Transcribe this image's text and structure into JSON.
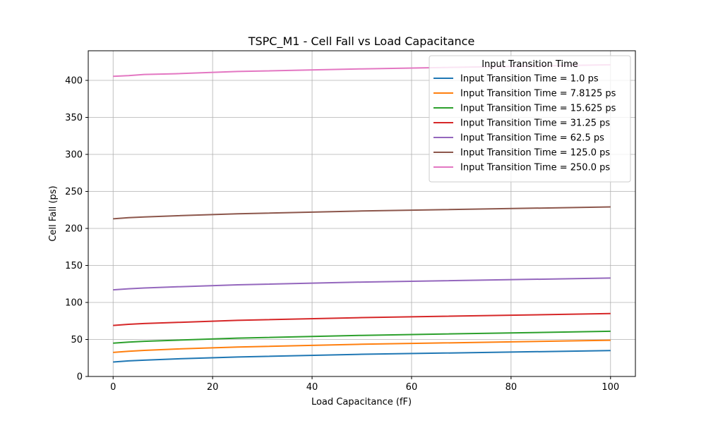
{
  "chart_data": {
    "type": "line",
    "title": "TSPC_M1 - Cell Fall vs Load Capacitance",
    "xlabel": "Load Capacitance (fF)",
    "ylabel": "Cell Fall (ps)",
    "xlim": [
      -5,
      105
    ],
    "ylim": [
      0,
      440
    ],
    "xticks": [
      0,
      20,
      40,
      60,
      80,
      100
    ],
    "yticks": [
      0,
      50,
      100,
      150,
      200,
      250,
      300,
      350,
      400
    ],
    "grid": true,
    "legend": {
      "title": "Input Transition Time",
      "placement": "top-right"
    },
    "x": [
      0,
      3.125,
      6.25,
      12.5,
      25,
      50,
      100
    ],
    "series": [
      {
        "name": "Input Transition Time = 1.0 ps",
        "color": "#1f77b4",
        "values": [
          19.5,
          21.0,
          22.0,
          23.7,
          26.3,
          30.0,
          35.0
        ]
      },
      {
        "name": "Input Transition Time = 7.8125 ps",
        "color": "#ff7f0e",
        "values": [
          32.5,
          34.0,
          35.2,
          37.0,
          39.8,
          43.5,
          49.0
        ]
      },
      {
        "name": "Input Transition Time = 15.625 ps",
        "color": "#2ca02c",
        "values": [
          45.0,
          46.5,
          47.5,
          49.0,
          51.8,
          55.5,
          61.0
        ]
      },
      {
        "name": "Input Transition Time = 31.25 ps",
        "color": "#d62728",
        "values": [
          69.0,
          70.5,
          71.5,
          73.0,
          75.8,
          79.5,
          85.0
        ]
      },
      {
        "name": "Input Transition Time = 62.5 ps",
        "color": "#9467bd",
        "values": [
          117.0,
          118.5,
          119.5,
          121.0,
          123.8,
          127.5,
          133.0
        ]
      },
      {
        "name": "Input Transition Time = 125.0 ps",
        "color": "#8c564b",
        "values": [
          213.0,
          214.5,
          215.5,
          217.0,
          219.8,
          223.5,
          229.0
        ]
      },
      {
        "name": "Input Transition Time = 250.0 ps",
        "color": "#e377c2",
        "values": [
          405.5,
          406.5,
          408.0,
          409.0,
          412.0,
          415.5,
          421.0
        ]
      }
    ]
  }
}
